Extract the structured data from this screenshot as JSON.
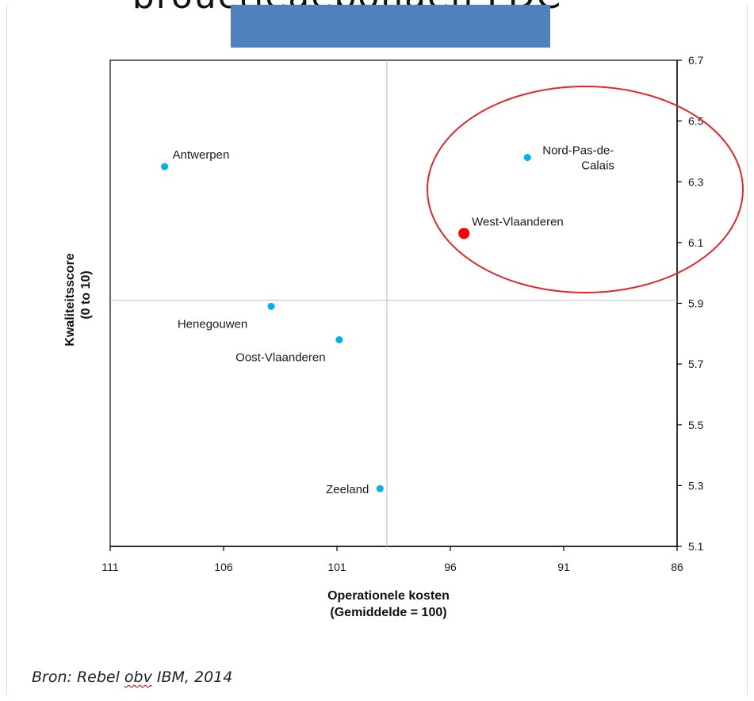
{
  "slide": {
    "title_fragment": "brouctieaebonaen LDC",
    "source_prefix": "Bron: Rebel ",
    "source_misspelled": "obv",
    "source_suffix": " IBM, 2014"
  },
  "colors": {
    "bar": "#4f81bd",
    "point": "#00b0f0",
    "highlight": "#ff0000",
    "ellipse": "#e8262a"
  },
  "chart_data": {
    "type": "scatter",
    "xlabel_line1": "Operationele kosten",
    "xlabel_line2": "(Gemiddelde = 100)",
    "ylabel_line1": "Kwaliteitsscore",
    "ylabel_line2": "(0 to 10)",
    "x_reversed": true,
    "xlim": [
      111,
      86
    ],
    "ylim": [
      5.1,
      6.7
    ],
    "x_ticks": [
      111,
      106,
      101,
      96,
      91,
      86
    ],
    "y_ticks": [
      5.1,
      5.3,
      5.5,
      5.7,
      5.9,
      6.1,
      6.3,
      6.5,
      6.7
    ],
    "x_tick_labels": [
      "111",
      "106",
      "101",
      "96",
      "91",
      "86"
    ],
    "y_tick_labels": [
      "5.1",
      "5.3",
      "5.5",
      "5.7",
      "5.9",
      "6.1",
      "6.3",
      "6.5",
      "6.7"
    ],
    "y_axis_side": "right",
    "reference_lines": {
      "x": 98.8,
      "y": 5.91
    },
    "grid": false,
    "points": [
      {
        "label": "Antwerpen",
        "x": 108.6,
        "y": 6.35,
        "label_pos": "above-right"
      },
      {
        "label": "Nord-Pas-de-\nCalais",
        "label_line1": "Nord-Pas-de-",
        "label_line2": "Calais",
        "x": 92.6,
        "y": 6.38,
        "label_pos": "right"
      },
      {
        "label": "West-Vlaanderen",
        "x": 95.4,
        "y": 6.13,
        "label_pos": "above-right",
        "highlight": true
      },
      {
        "label": "Henegouwen",
        "x": 103.9,
        "y": 5.89,
        "label_pos": "below-left"
      },
      {
        "label": "Oost-Vlaanderen",
        "x": 100.9,
        "y": 5.78,
        "label_pos": "below-left"
      },
      {
        "label": "Zeeland",
        "x": 99.1,
        "y": 5.29,
        "label_pos": "left"
      }
    ],
    "annotation": "red ellipse around Nord-Pas-de-Calais and West-Vlaanderen"
  }
}
